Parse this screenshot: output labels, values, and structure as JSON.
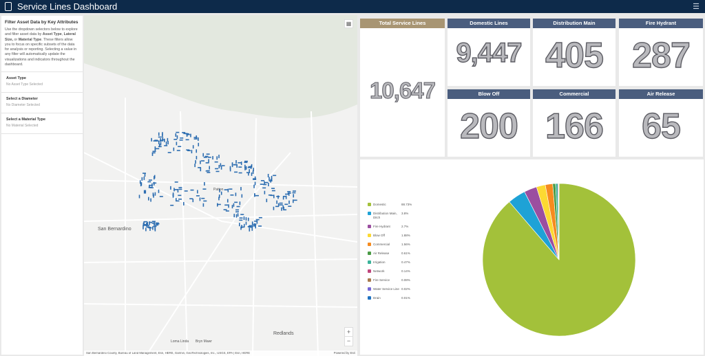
{
  "header": {
    "title": "Service Lines Dashboard",
    "menu_icon": "hamburger-icon"
  },
  "sidebar": {
    "heading": "Filter Asset Data by Key Attributes",
    "intro": [
      "Use the dropdown selectors below to explore and filter asset data by ",
      "Asset Type",
      ", ",
      "Lateral Size,",
      " or ",
      "Material Type",
      ". These filters allow you to focus on specific subsets of the data for analysis or reporting. Selecting a value in any filter will automatically update the visualizations and indicators throughout the dashboard."
    ],
    "filters": [
      {
        "label": "Asset Type",
        "value": "No Asset Type Selected"
      },
      {
        "label": "Select a Diameter",
        "value": "No Diameter Selected"
      },
      {
        "label": "Select a Material Type",
        "value": "No Material Selected"
      }
    ]
  },
  "map": {
    "labels": [
      "San Bernardino",
      "Redlands",
      "Loma Linda",
      "Bryn Mawr",
      "Patton"
    ],
    "attribution": "San Bernardino County, Bureau of Land Management, Esri, HERE, Garmin, GeoTechnologies, Inc., USGS, EPA | Esri, HERE",
    "powered": "Powered by Esri",
    "zoom_in": "+",
    "zoom_out": "−"
  },
  "indicators": {
    "total": {
      "title": "Total Service Lines",
      "value": "10,647"
    },
    "domestic": {
      "title": "Domestic Lines",
      "value": "9,447"
    },
    "distribution": {
      "title": "Distribution Main",
      "value": "405"
    },
    "hydrant": {
      "title": "Fire Hydrant",
      "value": "287"
    },
    "blowoff": {
      "title": "Blow Off",
      "value": "200"
    },
    "commercial": {
      "title": "Commercial",
      "value": "166"
    },
    "airrelease": {
      "title": "Air Release",
      "value": "65"
    }
  },
  "colors": {
    "header": "#0d2a4a",
    "card_title": "#4a5d7e",
    "total_title": "#a89573",
    "map_points": "#2b6cb0"
  },
  "chart_data": {
    "type": "pie",
    "title": "",
    "legend_position": "left",
    "slices": [
      {
        "label": "Domestic",
        "value": 88.73,
        "pct": "88.73%",
        "color": "#a3c13a"
      },
      {
        "label": "Distribution Main, Ditch",
        "value": 3.8,
        "pct": "3.8%",
        "color": "#1ea2d6"
      },
      {
        "label": "Fire Hydrant",
        "value": 2.7,
        "pct": "2.7%",
        "color": "#9b4ea0"
      },
      {
        "label": "Blow Off",
        "value": 1.88,
        "pct": "1.88%",
        "color": "#fcd932"
      },
      {
        "label": "Commercial",
        "value": 1.56,
        "pct": "1.56%",
        "color": "#f68b1f"
      },
      {
        "label": "Air Release",
        "value": 0.61,
        "pct": "0.61%",
        "color": "#4a9b45"
      },
      {
        "label": "Irrigation",
        "value": 0.47,
        "pct": "0.47%",
        "color": "#3bb39a"
      },
      {
        "label": "Network",
        "value": 0.14,
        "pct": "0.14%",
        "color": "#c0467d"
      },
      {
        "label": "Fire Service",
        "value": 0.08,
        "pct": "0.08%",
        "color": "#a87a4d"
      },
      {
        "label": "Water Service Line",
        "value": 0.02,
        "pct": "0.02%",
        "color": "#7566d6"
      },
      {
        "label": "Drain",
        "value": 0.01,
        "pct": "0.01%",
        "color": "#1f72c1"
      }
    ]
  }
}
